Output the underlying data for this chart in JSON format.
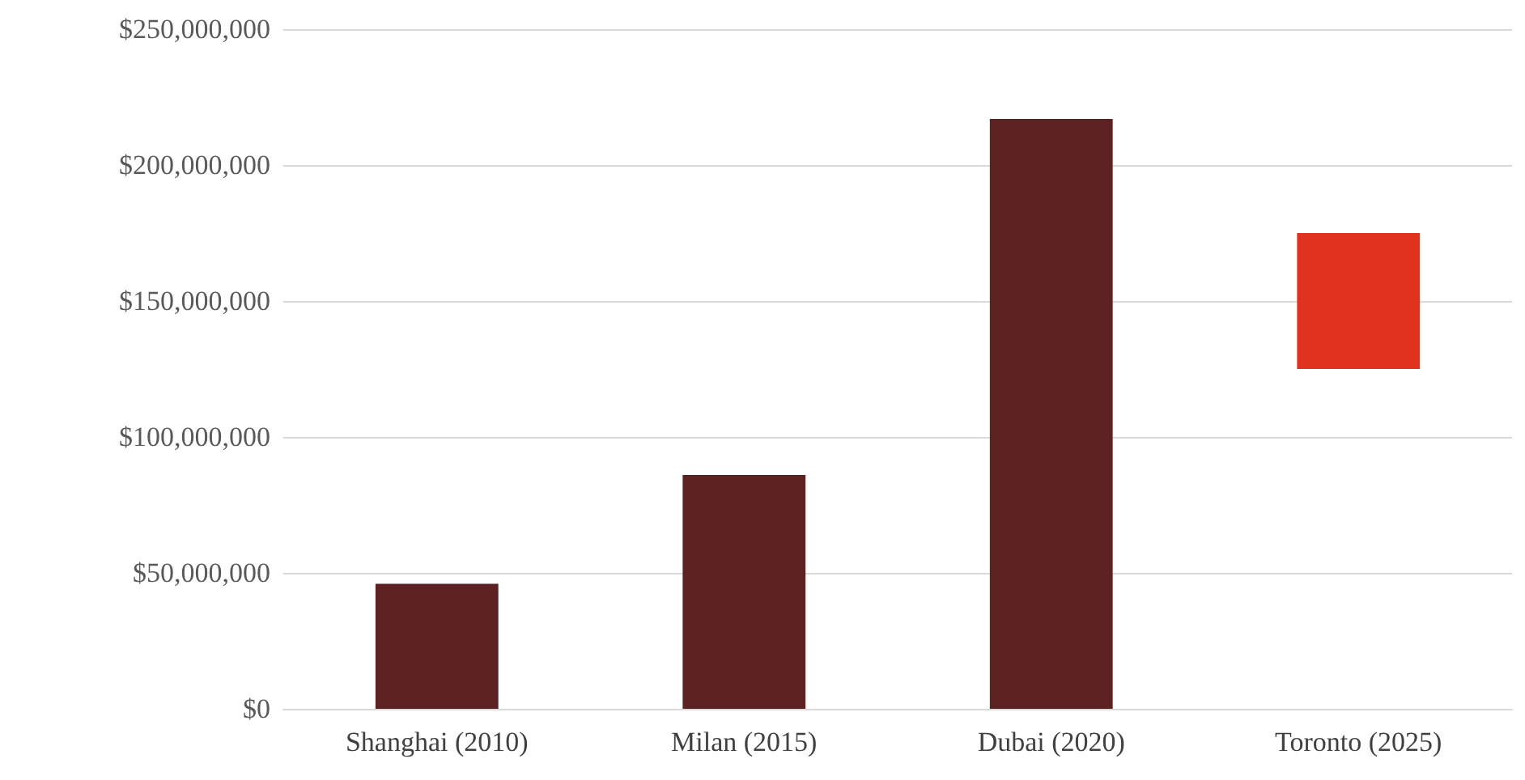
{
  "chart_data": {
    "type": "bar",
    "categories": [
      "Shanghai (2010)",
      "Milan (2015)",
      "Dubai (2020)",
      "Toronto (2025)"
    ],
    "values": [
      46000000,
      86000000,
      217000000,
      50000000
    ],
    "base": [
      0,
      0,
      0,
      125000000
    ],
    "colors": [
      "#5c2120",
      "#5c2120",
      "#5c2120",
      "#e0321e"
    ],
    "ylim": [
      0,
      250000000
    ],
    "yticks": [
      {
        "value": 0,
        "label": "$0"
      },
      {
        "value": 50000000,
        "label": "$50,000,000"
      },
      {
        "value": 100000000,
        "label": "$100,000,000"
      },
      {
        "value": 150000000,
        "label": "$150,000,000"
      },
      {
        "value": 200000000,
        "label": "$200,000,000"
      },
      {
        "value": 250000000,
        "label": "$250,000,000"
      }
    ],
    "grid": "y"
  }
}
